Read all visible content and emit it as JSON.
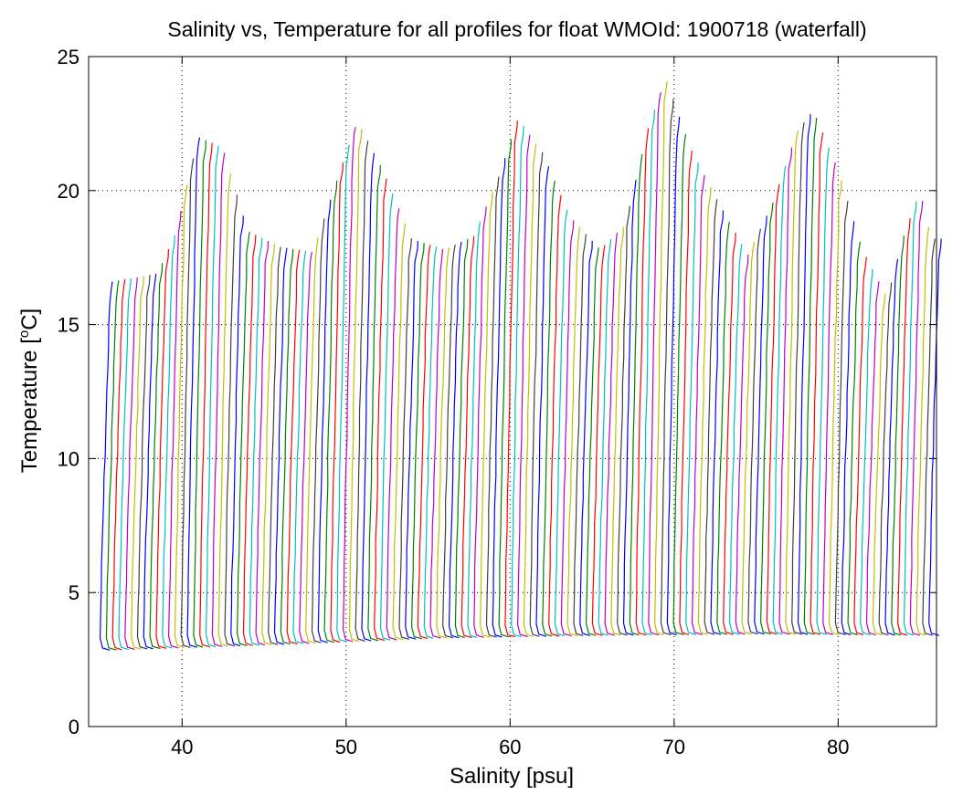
{
  "chart_data": {
    "type": "line",
    "title": "Salinity vs, Temperature for all profiles for float WMOId: 1900718 (waterfall)",
    "xlabel": "Salinity [psu]",
    "ylabel_prefix": "Temperature [",
    "ylabel_sup": "o",
    "ylabel_suffix": "C]",
    "xlim": [
      34.3,
      86
    ],
    "ylim": [
      0,
      25
    ],
    "xticks": [
      40,
      50,
      60,
      70,
      80
    ],
    "yticks": [
      0,
      5,
      10,
      15,
      20,
      25
    ],
    "grid": true,
    "grid_style": "dotted",
    "profile_count": 134,
    "first_profile_salinity_offset": 35,
    "profile_spacing": 0.38,
    "profile_colors": [
      "#0000ff",
      "#008000",
      "#ff0000",
      "#00bfbf",
      "#bf00bf",
      "#bfbf00",
      "#404040"
    ],
    "surface_temperature_envelope": [
      {
        "x": 35.7,
        "y": 16.6
      },
      {
        "x": 38.5,
        "y": 16.9
      },
      {
        "x": 39.6,
        "y": 18.4
      },
      {
        "x": 41.0,
        "y": 22.0
      },
      {
        "x": 42.5,
        "y": 21.6
      },
      {
        "x": 44.0,
        "y": 18.5
      },
      {
        "x": 46.0,
        "y": 17.9
      },
      {
        "x": 48.0,
        "y": 17.7
      },
      {
        "x": 49.5,
        "y": 20.5
      },
      {
        "x": 50.7,
        "y": 22.6
      },
      {
        "x": 52.3,
        "y": 20.7
      },
      {
        "x": 54.0,
        "y": 18.2
      },
      {
        "x": 56.0,
        "y": 17.8
      },
      {
        "x": 57.8,
        "y": 18.3
      },
      {
        "x": 59.3,
        "y": 20.5
      },
      {
        "x": 60.5,
        "y": 22.7
      },
      {
        "x": 62.0,
        "y": 21.4
      },
      {
        "x": 63.7,
        "y": 19.0
      },
      {
        "x": 65.5,
        "y": 17.8
      },
      {
        "x": 67.0,
        "y": 18.7
      },
      {
        "x": 68.5,
        "y": 22.5
      },
      {
        "x": 69.5,
        "y": 24.2
      },
      {
        "x": 71.0,
        "y": 21.6
      },
      {
        "x": 72.5,
        "y": 19.8
      },
      {
        "x": 74.5,
        "y": 17.6
      },
      {
        "x": 76.0,
        "y": 19.5
      },
      {
        "x": 77.5,
        "y": 22.2
      },
      {
        "x": 78.5,
        "y": 23.0
      },
      {
        "x": 80.0,
        "y": 20.8
      },
      {
        "x": 81.5,
        "y": 17.8
      },
      {
        "x": 83.0,
        "y": 16.0
      },
      {
        "x": 84.0,
        "y": 18.3
      },
      {
        "x": 85.0,
        "y": 20.0
      },
      {
        "x": 85.7,
        "y": 18.2
      }
    ],
    "bottom_temperature_envelope": [
      {
        "x": 35.0,
        "y": 2.85
      },
      {
        "x": 45.0,
        "y": 3.05
      },
      {
        "x": 55.0,
        "y": 3.3
      },
      {
        "x": 65.0,
        "y": 3.4
      },
      {
        "x": 75.0,
        "y": 3.45
      },
      {
        "x": 85.0,
        "y": 3.4
      }
    ]
  }
}
